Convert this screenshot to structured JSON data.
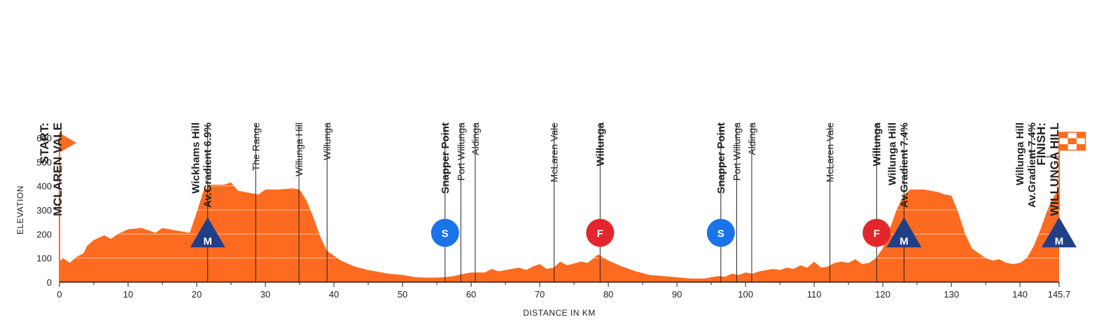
{
  "chart_data": {
    "type": "area",
    "xlabel": "DISTANCE IN KM",
    "ylabel": "ELEVATION",
    "xlim": [
      0,
      145.7
    ],
    "ylim": [
      0,
      650
    ],
    "x_ticks": [
      0,
      10,
      20,
      30,
      40,
      50,
      60,
      70,
      80,
      90,
      100,
      110,
      120,
      130,
      140,
      145.7
    ],
    "x_tick_labels": [
      "0",
      "10",
      "20",
      "30",
      "40",
      "50",
      "60",
      "70",
      "80",
      "90",
      "100",
      "110",
      "120",
      "130",
      "140",
      "145.7"
    ],
    "y_ticks": [
      0,
      100,
      200,
      300,
      400,
      500,
      600
    ],
    "y_tick_labels": [
      "0",
      "100",
      "200",
      "300",
      "400",
      "500",
      "600"
    ],
    "colors": {
      "fill": "#fd6b20",
      "grid_line": "#ffffff",
      "m_marker": "#1f3f87",
      "s_marker": "#1a73e8",
      "f_marker": "#e3262d",
      "text": "#222222"
    },
    "profile": [
      [
        0,
        85
      ],
      [
        0.5,
        100
      ],
      [
        1,
        90
      ],
      [
        1.5,
        80
      ],
      [
        2.5,
        105
      ],
      [
        3.5,
        120
      ],
      [
        4,
        150
      ],
      [
        5,
        175
      ],
      [
        6.5,
        195
      ],
      [
        7.5,
        180
      ],
      [
        8.5,
        200
      ],
      [
        10,
        220
      ],
      [
        12,
        225
      ],
      [
        14,
        205
      ],
      [
        15,
        225
      ],
      [
        17,
        215
      ],
      [
        19,
        205
      ],
      [
        20,
        290
      ],
      [
        21,
        380
      ],
      [
        22,
        405
      ],
      [
        24,
        405
      ],
      [
        25,
        415
      ],
      [
        26,
        380
      ],
      [
        28,
        370
      ],
      [
        29,
        365
      ],
      [
        30,
        385
      ],
      [
        32,
        385
      ],
      [
        34,
        390
      ],
      [
        35,
        385
      ],
      [
        36,
        340
      ],
      [
        37,
        270
      ],
      [
        38,
        190
      ],
      [
        39,
        130
      ],
      [
        41,
        90
      ],
      [
        43,
        65
      ],
      [
        45,
        50
      ],
      [
        47,
        40
      ],
      [
        48,
        35
      ],
      [
        50,
        30
      ],
      [
        52,
        20
      ],
      [
        54,
        18
      ],
      [
        56,
        20
      ],
      [
        57.5,
        25
      ],
      [
        59,
        35
      ],
      [
        60,
        40
      ],
      [
        62,
        40
      ],
      [
        63,
        55
      ],
      [
        64,
        45
      ],
      [
        65,
        50
      ],
      [
        67,
        60
      ],
      [
        68,
        50
      ],
      [
        69,
        65
      ],
      [
        70,
        75
      ],
      [
        71,
        55
      ],
      [
        72,
        60
      ],
      [
        73,
        85
      ],
      [
        74,
        70
      ],
      [
        76,
        85
      ],
      [
        77,
        80
      ],
      [
        78.5,
        115
      ],
      [
        80,
        90
      ],
      [
        82,
        65
      ],
      [
        84,
        45
      ],
      [
        86,
        30
      ],
      [
        88,
        25
      ],
      [
        90,
        20
      ],
      [
        92,
        15
      ],
      [
        94,
        15
      ],
      [
        95,
        20
      ],
      [
        96,
        25
      ],
      [
        97,
        22
      ],
      [
        98,
        35
      ],
      [
        99,
        30
      ],
      [
        100,
        40
      ],
      [
        101,
        35
      ],
      [
        102,
        45
      ],
      [
        104,
        55
      ],
      [
        105,
        50
      ],
      [
        106,
        60
      ],
      [
        107,
        55
      ],
      [
        108,
        70
      ],
      [
        109,
        60
      ],
      [
        110,
        85
      ],
      [
        111,
        60
      ],
      [
        112,
        65
      ],
      [
        113,
        80
      ],
      [
        114,
        85
      ],
      [
        115,
        80
      ],
      [
        116,
        95
      ],
      [
        117,
        75
      ],
      [
        118,
        80
      ],
      [
        119,
        100
      ],
      [
        120,
        140
      ],
      [
        121,
        220
      ],
      [
        122,
        300
      ],
      [
        123,
        360
      ],
      [
        124,
        385
      ],
      [
        126,
        385
      ],
      [
        128,
        375
      ],
      [
        129,
        365
      ],
      [
        130,
        360
      ],
      [
        131,
        290
      ],
      [
        132,
        200
      ],
      [
        133,
        140
      ],
      [
        134,
        120
      ],
      [
        135,
        100
      ],
      [
        136,
        90
      ],
      [
        137,
        95
      ],
      [
        138,
        80
      ],
      [
        139,
        75
      ],
      [
        140,
        80
      ],
      [
        141,
        100
      ],
      [
        142,
        150
      ],
      [
        143,
        220
      ],
      [
        144,
        300
      ],
      [
        145,
        360
      ],
      [
        145.7,
        380
      ]
    ],
    "waypoints": [
      {
        "km": 21.6,
        "lines": [
          "Wickhams Hill",
          "Av.Gradient 6.9%"
        ],
        "bold": true
      },
      {
        "km": 28.6,
        "lines": [
          "The Range"
        ],
        "bold": false
      },
      {
        "km": 34.9,
        "lines": [
          "Willunga Hill"
        ],
        "bold": false
      },
      {
        "km": 39,
        "lines": [
          "Willunga"
        ],
        "bold": false
      },
      {
        "km": 56.2,
        "lines": [
          "Snapper Point"
        ],
        "bold": true
      },
      {
        "km": 58.5,
        "lines": [
          "Port Willunga"
        ],
        "bold": false
      },
      {
        "km": 60.6,
        "lines": [
          "Aldinga"
        ],
        "bold": false
      },
      {
        "km": 72.1,
        "lines": [
          "McLaren Vale"
        ],
        "bold": false
      },
      {
        "km": 78.8,
        "lines": [
          "Willunga"
        ],
        "bold": true
      },
      {
        "km": 96.4,
        "lines": [
          "Snapper Point"
        ],
        "bold": true
      },
      {
        "km": 98.7,
        "lines": [
          "Port Willunga"
        ],
        "bold": false
      },
      {
        "km": 100.9,
        "lines": [
          "Aldinga"
        ],
        "bold": false
      },
      {
        "km": 112.3,
        "lines": [
          "McLaren Vale"
        ],
        "bold": false
      },
      {
        "km": 119.1,
        "lines": [
          "Willunga"
        ],
        "bold": true
      },
      {
        "km": 123.1,
        "lines": [
          "Willunga Hill",
          "Av.Gradient 7.4%"
        ],
        "bold": true
      },
      {
        "km": 141.7,
        "lines": [
          "Willunga Hill",
          "Av.Gradient 7.4%"
        ],
        "bold": true
      }
    ],
    "start": {
      "km": 0,
      "lines": [
        "START:",
        "MCLAREN VALE"
      ]
    },
    "finish": {
      "km": 145.7,
      "lines": [
        "FINISH:",
        "WILLUNGA HILL"
      ]
    },
    "markers": [
      {
        "type": "M",
        "km": 21.6,
        "elevation": 200
      },
      {
        "type": "S",
        "km": 56.2,
        "elevation": 205
      },
      {
        "type": "F",
        "km": 78.8,
        "elevation": 205
      },
      {
        "type": "S",
        "km": 96.4,
        "elevation": 205
      },
      {
        "type": "F",
        "km": 119.1,
        "elevation": 205
      },
      {
        "type": "M",
        "km": 123.1,
        "elevation": 200
      },
      {
        "type": "M",
        "km": 145.7,
        "elevation": 200
      }
    ]
  }
}
